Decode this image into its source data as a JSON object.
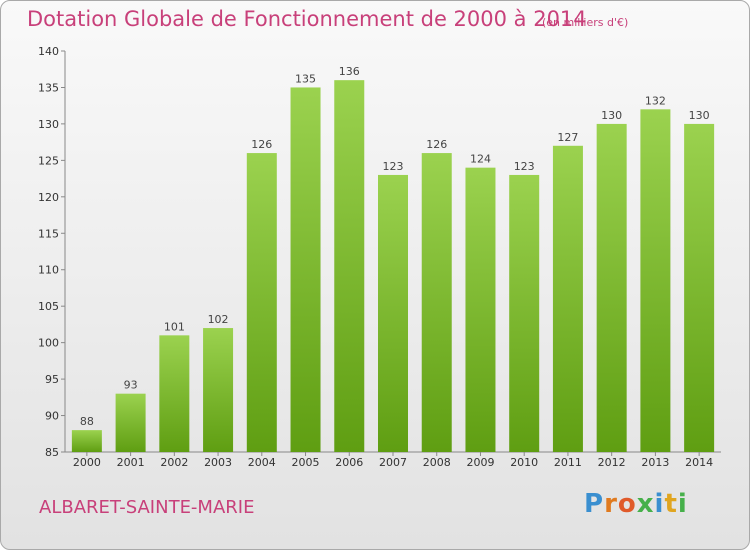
{
  "header": {
    "title": "Dotation Globale de Fonctionnement de 2000 à 2014",
    "unit": "(en milliers d'€)"
  },
  "footer": {
    "commune": "ALBARET-SAINTE-MARIE",
    "logo_text": "Proxiti"
  },
  "colors": {
    "accent": "#c8407a",
    "bar_top": "#9bd24f",
    "bar_bottom": "#5f9e12"
  },
  "chart_data": {
    "type": "bar",
    "title": "Dotation Globale de Fonctionnement de 2000 à 2014",
    "subtitle": "(en milliers d'€)",
    "xlabel": "",
    "ylabel": "",
    "categories": [
      "2000",
      "2001",
      "2002",
      "2003",
      "2004",
      "2005",
      "2006",
      "2007",
      "2008",
      "2009",
      "2010",
      "2011",
      "2012",
      "2013",
      "2014"
    ],
    "values": [
      88,
      93,
      101,
      102,
      126,
      135,
      136,
      123,
      126,
      124,
      123,
      127,
      130,
      132,
      130
    ],
    "ylim": [
      85,
      140
    ],
    "yticks": [
      85,
      90,
      95,
      100,
      105,
      110,
      115,
      120,
      125,
      130,
      135,
      140
    ],
    "grid": false,
    "data_labels": true
  }
}
